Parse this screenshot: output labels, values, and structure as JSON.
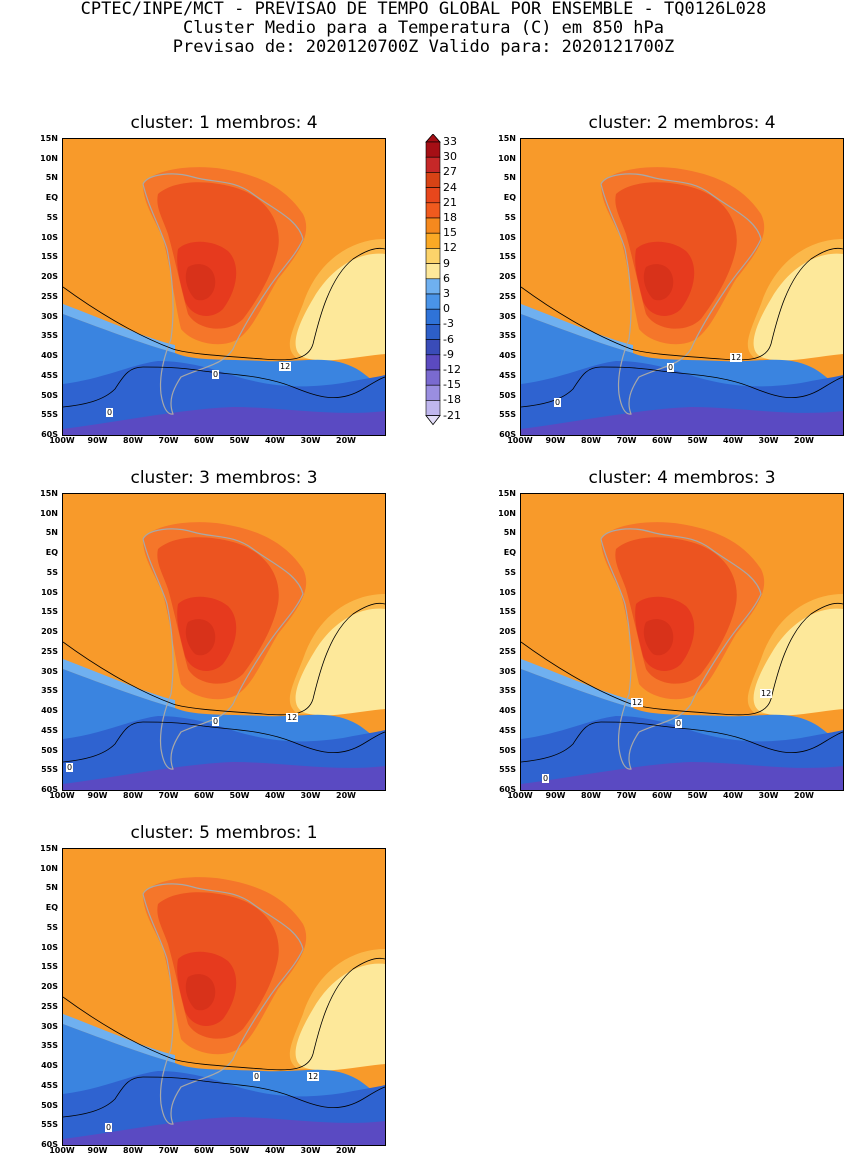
{
  "header": {
    "line1": "CPTEC/INPE/MCT - PREVISAO DE TEMPO GLOBAL POR ENSEMBLE - TQ0126L028",
    "line2": "Cluster Medio para a Temperatura (C) em 850 hPa",
    "line3": "Previsao de: 2020120700Z   Valido para: 2020121700Z"
  },
  "axes": {
    "y_ticks": [
      "15N",
      "10N",
      "5N",
      "EQ",
      "5S",
      "10S",
      "15S",
      "20S",
      "25S",
      "30S",
      "35S",
      "40S",
      "45S",
      "50S",
      "55S",
      "60S"
    ],
    "x_ticks": [
      "100W",
      "90W",
      "80W",
      "70W",
      "60W",
      "50W",
      "40W",
      "30W",
      "20W"
    ]
  },
  "legend": {
    "levels": [
      "33",
      "30",
      "27",
      "24",
      "21",
      "18",
      "15",
      "12",
      "9",
      "6",
      "3",
      "0",
      "-3",
      "-6",
      "-9",
      "-12",
      "-15",
      "-18",
      "-21"
    ],
    "colors": [
      "#a50f15",
      "#c62828",
      "#d84315",
      "#e8471c",
      "#f05a1e",
      "#f5891e",
      "#faa925",
      "#fcd36a",
      "#fde89a",
      "#6fb0f0",
      "#4a94e8",
      "#2f73d8",
      "#2d5fc8",
      "#3a4cb8",
      "#5b4ac0",
      "#7a6ad0",
      "#9a8ee0",
      "#bfb6ee",
      "#e2ddf8"
    ]
  },
  "panels": [
    {
      "title": "cluster: 1   membros: 4",
      "labels": [
        "12",
        "0",
        "0"
      ]
    },
    {
      "title": "cluster: 2   membros: 4",
      "labels": [
        "12",
        "0",
        "0"
      ]
    },
    {
      "title": "cluster: 3   membros: 3",
      "labels": [
        "12",
        "0",
        "0"
      ]
    },
    {
      "title": "cluster: 4   membros: 3",
      "labels": [
        "12",
        "12",
        "0",
        "0"
      ]
    },
    {
      "title": "cluster: 5   membros: 1",
      "labels": [
        "12",
        "0",
        "0"
      ]
    }
  ],
  "map_colors": {
    "warm_bg": "#f89a2a",
    "very_warm": "#f5762a",
    "hot": "#ec5420",
    "hotter": "#e63a1e",
    "yellow": "#fde89a",
    "orange_light": "#fbb84a",
    "blue_light": "#6fb0f0",
    "blue": "#3a84e0",
    "blue_dark": "#2f63d0",
    "purple": "#5a4ac2",
    "border": "#a8a8a8"
  }
}
